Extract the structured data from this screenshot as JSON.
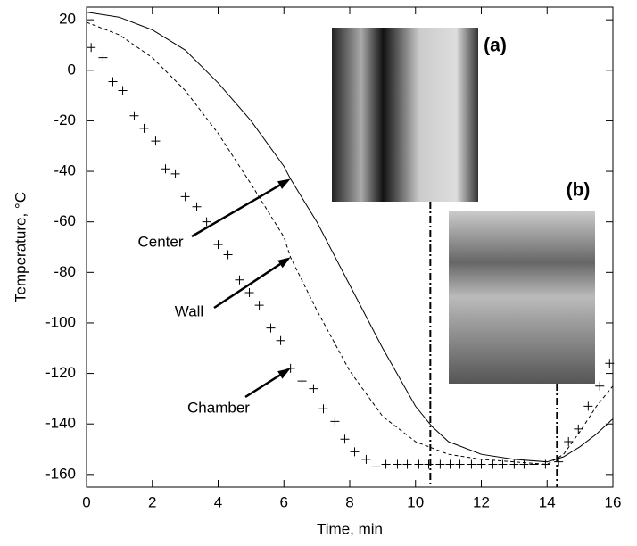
{
  "chart_data": {
    "type": "line",
    "x_label": "Time, min",
    "y_label": "Temperature, °C",
    "xlim": [
      0,
      16
    ],
    "ylim": [
      -165,
      25
    ],
    "xticks": [
      0,
      2,
      4,
      6,
      8,
      10,
      12,
      14,
      16
    ],
    "yticks": [
      20,
      0,
      -20,
      -40,
      -60,
      -80,
      -100,
      -120,
      -140,
      -160
    ],
    "series": [
      {
        "name": "Center",
        "style": "solid",
        "color": "#000000",
        "x": [
          0,
          1,
          2,
          3,
          4,
          5,
          6,
          6.2,
          7,
          8,
          9,
          10,
          10.5,
          11,
          12,
          13,
          14,
          14.5,
          15,
          15.5,
          16
        ],
        "values": [
          23,
          21,
          16,
          8,
          -5,
          -20,
          -38,
          -43,
          -60,
          -85,
          -110,
          -133,
          -141,
          -147,
          -152,
          -154,
          -155,
          -153,
          -149,
          -144,
          -138
        ]
      },
      {
        "name": "Wall",
        "style": "dashed",
        "color": "#000000",
        "x": [
          0,
          1,
          2,
          3,
          4,
          5,
          6,
          6.2,
          7,
          8,
          9,
          10,
          11,
          12,
          13,
          14,
          14.5,
          15,
          15.5,
          16
        ],
        "values": [
          19,
          14,
          5,
          -8,
          -25,
          -45,
          -66,
          -74,
          -95,
          -119,
          -137,
          -147,
          -152,
          -154,
          -155,
          -156,
          -152,
          -143,
          -133,
          -125
        ]
      },
      {
        "name": "Chamber",
        "style": "plus",
        "color": "#000000",
        "x": [
          0.14,
          0.5,
          0.8,
          1.1,
          1.45,
          1.75,
          2.1,
          2.4,
          2.7,
          3.0,
          3.35,
          3.65,
          4.0,
          4.3,
          4.65,
          4.95,
          5.25,
          5.6,
          5.9,
          6.2,
          6.55,
          6.9,
          7.2,
          7.55,
          7.85,
          8.15,
          8.5,
          8.8,
          9.1,
          9.45,
          9.75,
          10.1,
          10.4,
          10.75,
          11.05,
          11.35,
          11.7,
          12.0,
          12.35,
          12.65,
          13.0,
          13.3,
          13.6,
          13.95,
          14.35,
          14.65,
          14.95,
          15.25,
          15.6,
          15.9
        ],
        "values": [
          9,
          5,
          -4.5,
          -8,
          -18,
          -23,
          -28,
          -39,
          -41,
          -50,
          -54,
          -60,
          -69,
          -73,
          -83,
          -88,
          -93,
          -102,
          -107,
          -118,
          -123,
          -126,
          -134,
          -139,
          -146,
          -151,
          -154,
          -157,
          -156,
          -156,
          -156,
          -156,
          -156,
          -156,
          -156,
          -156,
          -156,
          -156,
          -156,
          -156,
          -156,
          -156,
          -156,
          -156,
          -155,
          -147,
          -142,
          -133,
          -125,
          -116
        ]
      }
    ],
    "photos": [
      {
        "label": "(a)",
        "time": 10.45
      },
      {
        "label": "(b)",
        "time": 14.3
      }
    ]
  }
}
